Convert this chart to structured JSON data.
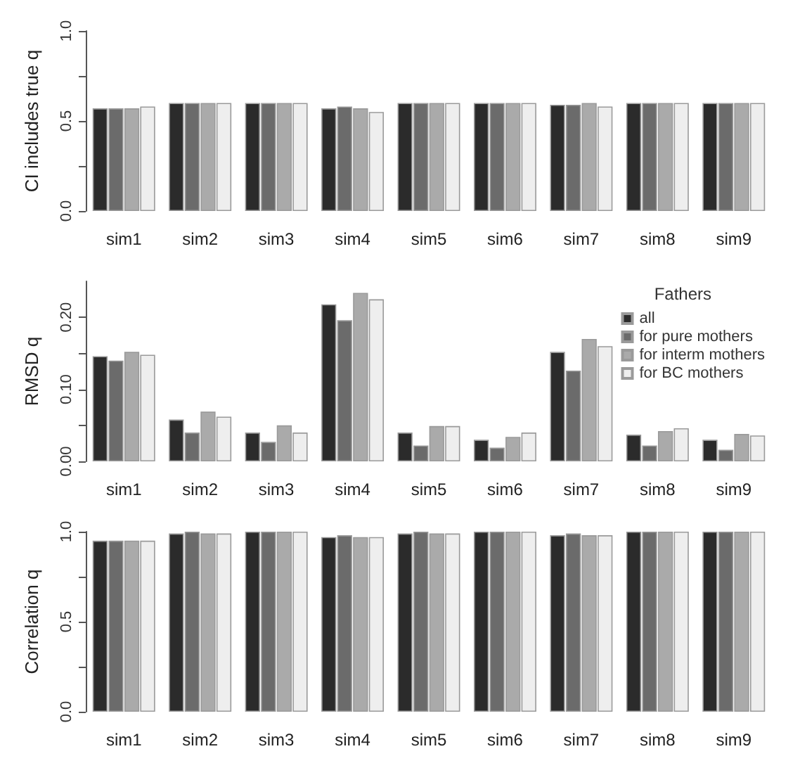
{
  "chart_data": [
    {
      "type": "bar",
      "ylabel": "CI includes true q",
      "categories": [
        "sim1",
        "sim2",
        "sim3",
        "sim4",
        "sim5",
        "sim6",
        "sim7",
        "sim8",
        "sim9"
      ],
      "ylim": [
        0,
        1
      ],
      "yticks": [
        {
          "value": 0,
          "label": "0.0"
        },
        {
          "value": 0.25,
          "label": null
        },
        0.5,
        {
          "value": 0.75,
          "label": null
        },
        {
          "value": 1,
          "label": "1.0"
        }
      ],
      "series": [
        {
          "color": "#2b2b2b",
          "values": [
            0.57,
            0.6,
            0.6,
            0.57,
            0.6,
            0.6,
            0.59,
            0.6,
            0.6
          ]
        },
        {
          "color": "#6b6b6b",
          "values": [
            0.57,
            0.6,
            0.6,
            0.58,
            0.6,
            0.6,
            0.59,
            0.6,
            0.6
          ]
        },
        {
          "color": "#aaaaaa",
          "values": [
            0.57,
            0.6,
            0.6,
            0.57,
            0.6,
            0.6,
            0.6,
            0.6,
            0.6
          ]
        },
        {
          "color": "#eeeeee",
          "values": [
            0.58,
            0.6,
            0.6,
            0.55,
            0.6,
            0.6,
            0.58,
            0.6,
            0.6
          ]
        }
      ]
    },
    {
      "type": "bar",
      "ylabel": "RMSD q",
      "categories": [
        "sim1",
        "sim2",
        "sim3",
        "sim4",
        "sim5",
        "sim6",
        "sim7",
        "sim8",
        "sim9"
      ],
      "ylim": [
        0,
        0.25
      ],
      "yticks": [
        {
          "value": 0,
          "label": "0.00"
        },
        {
          "value": 0.05,
          "label": null
        },
        {
          "value": 0.1,
          "label": "0.10"
        },
        {
          "value": 0.15,
          "label": null
        },
        {
          "value": 0.2,
          "label": "0.20"
        }
      ],
      "legend": "right",
      "legend_title": "Fathers",
      "series": [
        {
          "name": "all",
          "color": "#2b2b2b",
          "values": [
            0.146,
            0.058,
            0.04,
            0.218,
            0.04,
            0.03,
            0.152,
            0.037,
            0.03
          ]
        },
        {
          "name": "for pure mothers",
          "color": "#6b6b6b",
          "values": [
            0.14,
            0.04,
            0.027,
            0.196,
            0.022,
            0.019,
            0.126,
            0.022,
            0.016
          ]
        },
        {
          "name": "for interm mothers",
          "color": "#aaaaaa",
          "values": [
            0.152,
            0.069,
            0.05,
            0.234,
            0.049,
            0.034,
            0.17,
            0.042,
            0.038
          ]
        },
        {
          "name": "for BC mothers",
          "color": "#eeeeee",
          "values": [
            0.148,
            0.062,
            0.04,
            0.225,
            0.049,
            0.04,
            0.16,
            0.046,
            0.036
          ]
        }
      ]
    },
    {
      "type": "bar",
      "ylabel": "Correlation q",
      "categories": [
        "sim1",
        "sim2",
        "sim3",
        "sim4",
        "sim5",
        "sim6",
        "sim7",
        "sim8",
        "sim9"
      ],
      "ylim": [
        0,
        1
      ],
      "yticks": [
        {
          "value": 0,
          "label": "0.0"
        },
        {
          "value": 0.25,
          "label": null
        },
        0.5,
        {
          "value": 0.75,
          "label": null
        },
        {
          "value": 1,
          "label": "1.0"
        }
      ],
      "series": [
        {
          "color": "#2b2b2b",
          "values": [
            0.95,
            0.99,
            1.0,
            0.97,
            0.99,
            1.0,
            0.98,
            1.0,
            1.0
          ]
        },
        {
          "color": "#6b6b6b",
          "values": [
            0.95,
            1.0,
            1.0,
            0.98,
            1.0,
            1.0,
            0.99,
            1.0,
            1.0
          ]
        },
        {
          "color": "#aaaaaa",
          "values": [
            0.95,
            0.99,
            1.0,
            0.97,
            0.99,
            1.0,
            0.98,
            1.0,
            1.0
          ]
        },
        {
          "color": "#eeeeee",
          "values": [
            0.95,
            0.99,
            1.0,
            0.97,
            0.99,
            1.0,
            0.98,
            1.0,
            1.0
          ]
        }
      ]
    }
  ]
}
